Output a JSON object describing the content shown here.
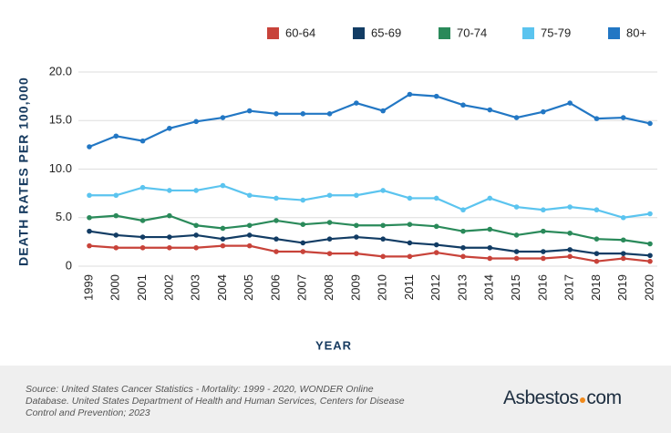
{
  "chart_data": {
    "type": "line",
    "x_label": "YEAR",
    "y_label": "DEATH RATES PER 100,000",
    "categories": [
      "1999",
      "2000",
      "2001",
      "2002",
      "2003",
      "2004",
      "2005",
      "2006",
      "2007",
      "2008",
      "2009",
      "2010",
      "2011",
      "2012",
      "2013",
      "2014",
      "2015",
      "2016",
      "2017",
      "2018",
      "2019",
      "2020"
    ],
    "series": [
      {
        "name": "60-64",
        "color": "#c8433a",
        "values": [
          2.1,
          1.9,
          1.9,
          1.9,
          1.9,
          2.1,
          2.1,
          1.5,
          1.5,
          1.3,
          1.3,
          1.0,
          1.0,
          1.4,
          1.0,
          0.8,
          0.8,
          0.8,
          1.0,
          0.5,
          0.8,
          0.5
        ]
      },
      {
        "name": "65-69",
        "color": "#123c64",
        "values": [
          3.6,
          3.2,
          3.0,
          3.0,
          3.2,
          2.8,
          3.2,
          2.8,
          2.4,
          2.8,
          3.0,
          2.8,
          2.4,
          2.2,
          1.9,
          1.9,
          1.5,
          1.5,
          1.7,
          1.3,
          1.3,
          1.1
        ]
      },
      {
        "name": "70-74",
        "color": "#2a8a5a",
        "values": [
          5.0,
          5.2,
          4.7,
          5.2,
          4.2,
          3.9,
          4.2,
          4.7,
          4.3,
          4.5,
          4.2,
          4.2,
          4.3,
          4.1,
          3.6,
          3.8,
          3.2,
          3.6,
          3.4,
          2.8,
          2.7,
          2.3
        ]
      },
      {
        "name": "75-79",
        "color": "#5bc4ef",
        "values": [
          7.3,
          7.3,
          8.1,
          7.8,
          7.8,
          8.3,
          7.3,
          7.0,
          6.8,
          7.3,
          7.3,
          7.8,
          7.0,
          7.0,
          5.8,
          7.0,
          6.1,
          5.8,
          6.1,
          5.8,
          5.0,
          5.4
        ]
      },
      {
        "name": "80+",
        "color": "#2277c4",
        "values": [
          12.3,
          13.4,
          12.9,
          14.2,
          14.9,
          15.3,
          16.0,
          15.7,
          15.7,
          15.7,
          16.8,
          16.0,
          17.7,
          17.5,
          16.6,
          16.1,
          15.3,
          15.9,
          16.8,
          15.2,
          15.3,
          14.7
        ]
      }
    ],
    "ylim": [
      0,
      20
    ],
    "yticks": [
      0,
      {
        "value": 5,
        "label": "5.0"
      },
      {
        "value": 10,
        "label": "10.0"
      },
      {
        "value": 15,
        "label": "15.0"
      },
      {
        "value": 20,
        "label": "20.0"
      }
    ],
    "grid": true,
    "legend": "top"
  },
  "footer": {
    "source": "Source: United States Cancer Statistics - Mortality: 1999 - 2020, WONDER Online Database. United States Department of Health and Human Services, Centers for Disease Control and Prevention; 2023",
    "logo_name": "Asbestos",
    "logo_suffix": "com"
  }
}
